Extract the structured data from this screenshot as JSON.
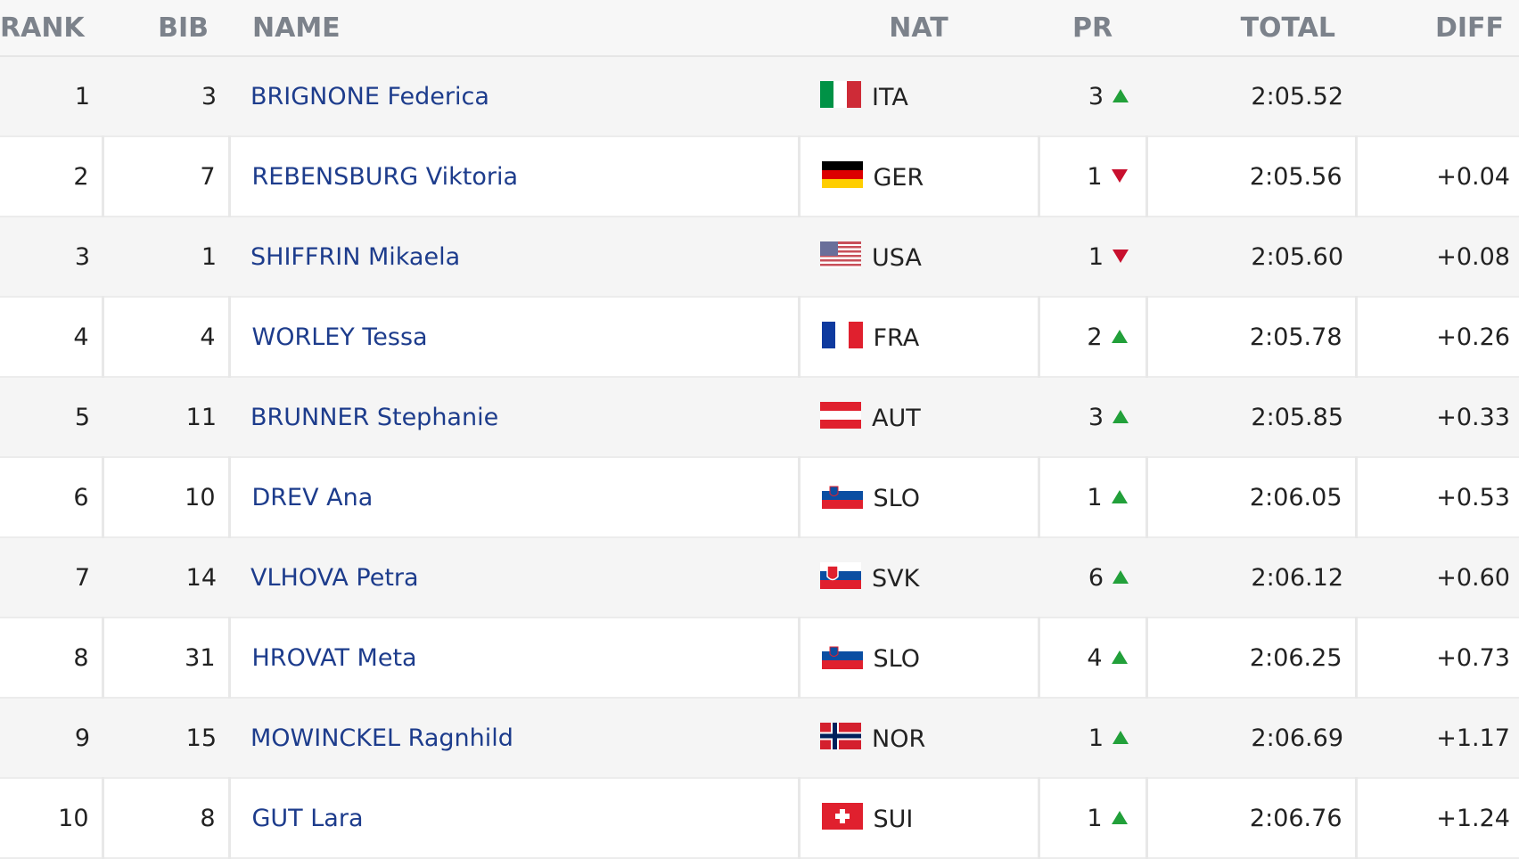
{
  "header": {
    "rank": "RANK",
    "bib": "BIB",
    "name": "NAME",
    "nat": "NAT",
    "pr": "PR",
    "total": "TOTAL",
    "diff": "DIFF"
  },
  "rows": [
    {
      "rank": 1,
      "bib": 3,
      "name": "BRIGNONE Federica",
      "nat": "ITA",
      "pr": 3,
      "total": "2:05.52"
    },
    {
      "rank": 2,
      "bib": 7,
      "name": "REBENSBURG Viktoria",
      "nat": "GER",
      "pr": 1,
      "total": "2:05.56",
      "diff": "+0.04"
    },
    {
      "rank": 3,
      "bib": 1,
      "name": "SHIFFRIN Mikaela",
      "nat": "USA",
      "pr": 1,
      "total": "2:05.60",
      "diff": "+0.08"
    },
    {
      "rank": 4,
      "bib": 4,
      "name": "WORLEY Tessa",
      "nat": "FRA",
      "pr": 2,
      "total": "2:05.78",
      "diff": "+0.26"
    },
    {
      "rank": 5,
      "bib": 11,
      "name": "BRUNNER Stephanie",
      "nat": "AUT",
      "pr": 3,
      "total": "2:05.85",
      "diff": "+0.33"
    },
    {
      "rank": 6,
      "bib": 10,
      "name": "DREV Ana",
      "nat": "SLO",
      "pr": 1,
      "total": "2:06.05",
      "diff": "+0.53"
    },
    {
      "rank": 7,
      "bib": 14,
      "name": "VLHOVA Petra",
      "nat": "SVK",
      "pr": 6,
      "total": "2:06.12",
      "diff": "+0.60"
    },
    {
      "rank": 8,
      "bib": 31,
      "name": "HROVAT Meta",
      "nat": "SLO",
      "pr": 4,
      "total": "2:06.25",
      "diff": "+0.73"
    },
    {
      "rank": 9,
      "bib": 15,
      "name": "MOWINCKEL Ragnhild",
      "nat": "NOR",
      "pr": 1,
      "total": "2:06.69",
      "diff": "+1.17"
    },
    {
      "rank": 10,
      "bib": 8,
      "name": "GUT Lara",
      "nat": "SUI",
      "pr": 1,
      "total": "2:06.76",
      "diff": "+1.24"
    }
  ]
}
